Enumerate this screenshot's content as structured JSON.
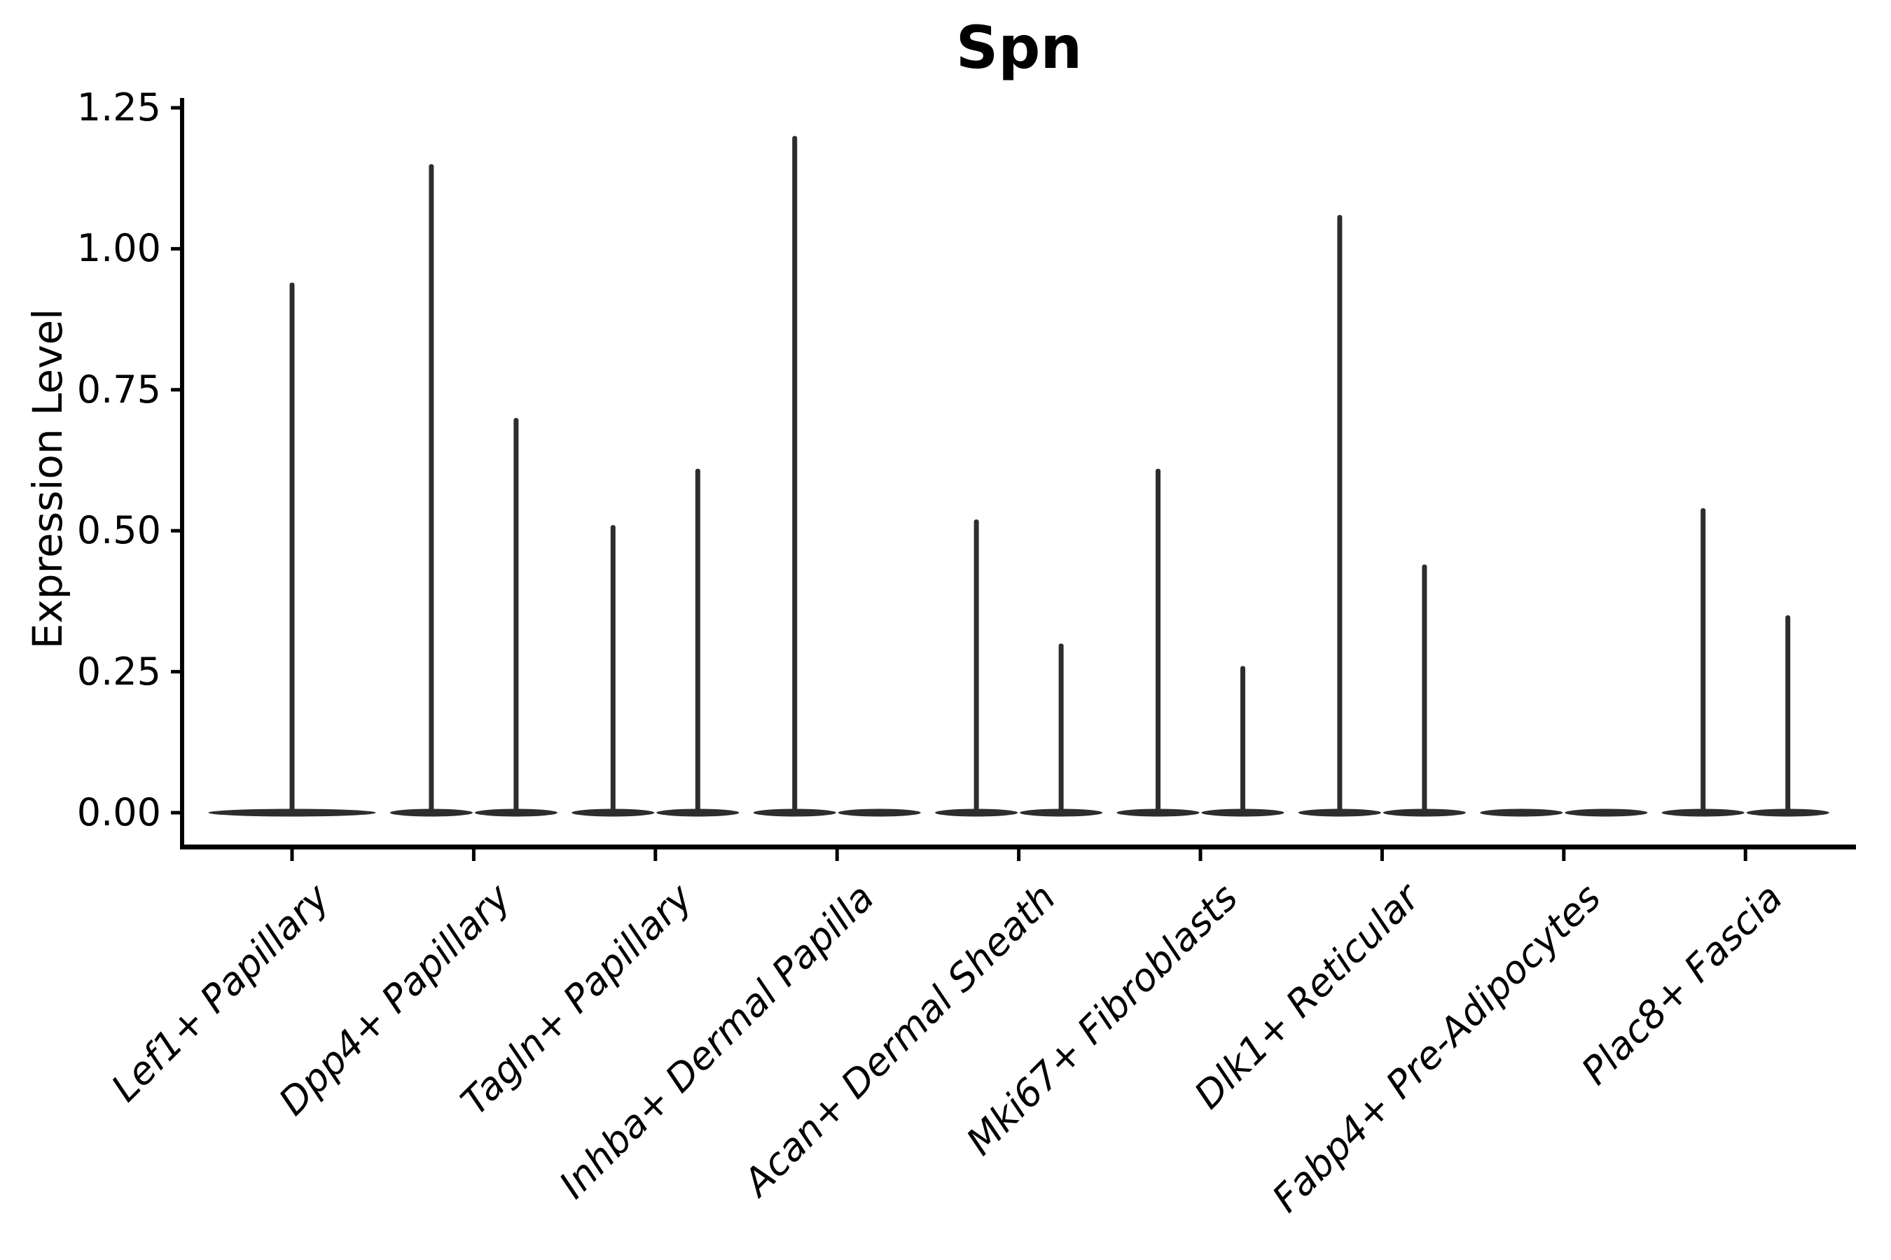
{
  "chart_data": {
    "type": "violin",
    "title": "Spn",
    "xlabel": "",
    "ylabel": "Expression Level",
    "ylim": [
      0,
      1.25
    ],
    "yticks": [
      "0.00",
      "0.25",
      "0.50",
      "0.75",
      "1.00",
      "1.25"
    ],
    "grid": false,
    "legend": "none",
    "xtick_rotation_deg": 45,
    "description": "Single-cell expression violin plot of gene Spn across fibroblast cell types; each category holds up to two split violins that collapse to a flat bar at 0 with a thin spike up to the category maximum expression",
    "categories": [
      {
        "label": "Lef1+ Papillary",
        "violins": [
          {
            "slot": "full",
            "max": 0.94
          }
        ]
      },
      {
        "label": "Dpp4+ Papillary",
        "violins": [
          {
            "slot": "left",
            "max": 1.15
          },
          {
            "slot": "right",
            "max": 0.7
          }
        ]
      },
      {
        "label": "Tagln+ Papillary",
        "violins": [
          {
            "slot": "left",
            "max": 0.51
          },
          {
            "slot": "right",
            "max": 0.61
          }
        ]
      },
      {
        "label": "Inhba+ Dermal Papilla",
        "violins": [
          {
            "slot": "left",
            "max": 1.2
          },
          {
            "slot": "right",
            "max": 0.0
          }
        ]
      },
      {
        "label": "Acan+ Dermal Sheath",
        "violins": [
          {
            "slot": "left",
            "max": 0.52
          },
          {
            "slot": "right",
            "max": 0.3
          }
        ]
      },
      {
        "label": "Mki67+ Fibroblasts",
        "violins": [
          {
            "slot": "left",
            "max": 0.61
          },
          {
            "slot": "right",
            "max": 0.26
          }
        ]
      },
      {
        "label": "Dlk1+ Reticular",
        "violins": [
          {
            "slot": "left",
            "max": 1.06
          },
          {
            "slot": "right",
            "max": 0.44
          }
        ]
      },
      {
        "label": "Fabp4+ Pre-Adipocytes",
        "violins": [
          {
            "slot": "left",
            "max": 0.0
          },
          {
            "slot": "right",
            "max": 0.0
          }
        ]
      },
      {
        "label": "Plac8+ Fascia",
        "violins": [
          {
            "slot": "left",
            "max": 0.54
          },
          {
            "slot": "right",
            "max": 0.35
          }
        ]
      }
    ],
    "colors": {
      "violin": "#2d2d2d",
      "axis": "#000000",
      "text": "#000000",
      "background": "#ffffff"
    }
  }
}
